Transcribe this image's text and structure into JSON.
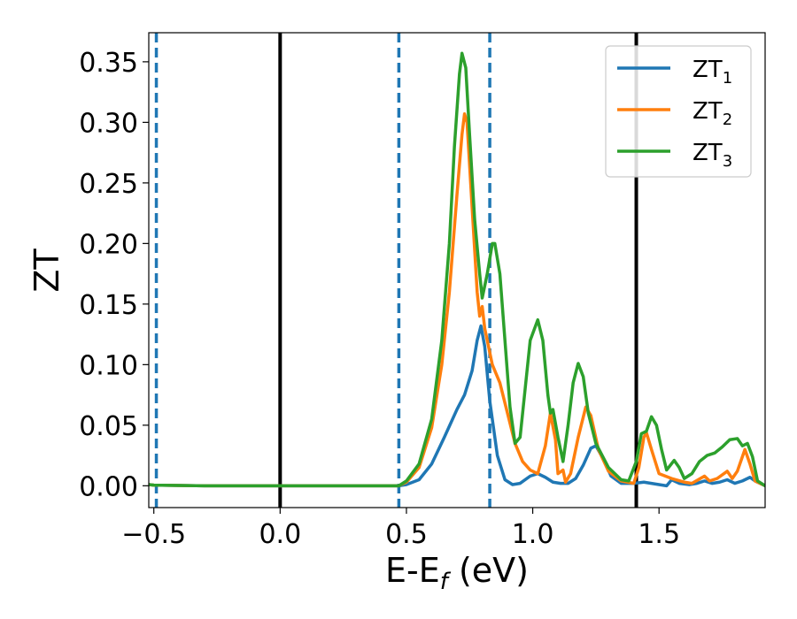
{
  "chart_data": {
    "type": "line",
    "xlabel_main": "E-E",
    "xlabel_sub": "f",
    "xlabel_unit": " (eV)",
    "ylabel": "ZT",
    "xlim": [
      -0.52,
      1.92
    ],
    "ylim": [
      -0.018,
      0.374
    ],
    "x_ticks": [
      -0.5,
      0.0,
      0.5,
      1.0,
      1.5
    ],
    "x_tick_labels": [
      "−0.5",
      "0.0",
      "0.5",
      "1.0",
      "1.5"
    ],
    "y_ticks": [
      0.0,
      0.05,
      0.1,
      0.15,
      0.2,
      0.25,
      0.3,
      0.35
    ],
    "y_tick_labels": [
      "0.00",
      "0.05",
      "0.10",
      "0.15",
      "0.20",
      "0.25",
      "0.30",
      "0.35"
    ],
    "grid": false,
    "legend_position": "top-right",
    "solid_vlines": [
      0.0,
      1.41
    ],
    "dashed_vlines": [
      -0.49,
      0.47,
      0.83
    ],
    "solid_vline_color": "#000000",
    "dashed_vline_color": "#1f77b4",
    "series": [
      {
        "name": "ZT",
        "subscript": "1",
        "color": "#1f77b4",
        "points": [
          [
            -0.52,
            0.001
          ],
          [
            -0.5,
            0.0005
          ],
          [
            -0.3,
            0.0
          ],
          [
            0.0,
            0.0
          ],
          [
            0.3,
            0.0
          ],
          [
            0.47,
            0.0
          ],
          [
            0.5,
            0.001
          ],
          [
            0.55,
            0.005
          ],
          [
            0.6,
            0.018
          ],
          [
            0.65,
            0.04
          ],
          [
            0.7,
            0.063
          ],
          [
            0.73,
            0.075
          ],
          [
            0.76,
            0.095
          ],
          [
            0.78,
            0.12
          ],
          [
            0.795,
            0.132
          ],
          [
            0.81,
            0.115
          ],
          [
            0.83,
            0.07
          ],
          [
            0.86,
            0.025
          ],
          [
            0.89,
            0.005
          ],
          [
            0.92,
            0.001
          ],
          [
            0.95,
            0.002
          ],
          [
            0.99,
            0.008
          ],
          [
            1.02,
            0.01
          ],
          [
            1.05,
            0.007
          ],
          [
            1.08,
            0.003
          ],
          [
            1.11,
            0.002
          ],
          [
            1.14,
            0.002
          ],
          [
            1.17,
            0.006
          ],
          [
            1.2,
            0.017
          ],
          [
            1.23,
            0.031
          ],
          [
            1.25,
            0.033
          ],
          [
            1.28,
            0.022
          ],
          [
            1.31,
            0.008
          ],
          [
            1.35,
            0.002
          ],
          [
            1.4,
            0.002
          ],
          [
            1.44,
            0.003
          ],
          [
            1.47,
            0.002
          ],
          [
            1.5,
            0.001
          ],
          [
            1.53,
            0.0
          ],
          [
            1.55,
            0.005
          ],
          [
            1.58,
            0.002
          ],
          [
            1.62,
            0.001
          ],
          [
            1.65,
            0.002
          ],
          [
            1.68,
            0.004
          ],
          [
            1.71,
            0.002
          ],
          [
            1.74,
            0.003
          ],
          [
            1.77,
            0.005
          ],
          [
            1.8,
            0.002
          ],
          [
            1.83,
            0.004
          ],
          [
            1.86,
            0.007
          ],
          [
            1.88,
            0.004
          ],
          [
            1.92,
            0.0
          ]
        ]
      },
      {
        "name": "ZT",
        "subscript": "2",
        "color": "#ff7f0e",
        "points": [
          [
            -0.52,
            0.001
          ],
          [
            -0.5,
            0.0005
          ],
          [
            -0.3,
            0.0
          ],
          [
            0.0,
            0.0
          ],
          [
            0.3,
            0.0
          ],
          [
            0.47,
            0.0
          ],
          [
            0.5,
            0.003
          ],
          [
            0.55,
            0.015
          ],
          [
            0.6,
            0.048
          ],
          [
            0.64,
            0.1
          ],
          [
            0.67,
            0.16
          ],
          [
            0.7,
            0.24
          ],
          [
            0.72,
            0.29
          ],
          [
            0.73,
            0.307
          ],
          [
            0.74,
            0.3
          ],
          [
            0.76,
            0.23
          ],
          [
            0.78,
            0.16
          ],
          [
            0.79,
            0.14
          ],
          [
            0.8,
            0.148
          ],
          [
            0.81,
            0.13
          ],
          [
            0.82,
            0.12
          ],
          [
            0.84,
            0.1
          ],
          [
            0.87,
            0.085
          ],
          [
            0.9,
            0.06
          ],
          [
            0.93,
            0.035
          ],
          [
            0.96,
            0.02
          ],
          [
            0.99,
            0.013
          ],
          [
            1.02,
            0.01
          ],
          [
            1.05,
            0.033
          ],
          [
            1.07,
            0.06
          ],
          [
            1.09,
            0.038
          ],
          [
            1.1,
            0.01
          ],
          [
            1.12,
            0.013
          ],
          [
            1.13,
            0.003
          ],
          [
            1.15,
            0.01
          ],
          [
            1.18,
            0.04
          ],
          [
            1.21,
            0.065
          ],
          [
            1.23,
            0.058
          ],
          [
            1.26,
            0.03
          ],
          [
            1.3,
            0.012
          ],
          [
            1.35,
            0.004
          ],
          [
            1.4,
            0.002
          ],
          [
            1.42,
            0.015
          ],
          [
            1.44,
            0.04
          ],
          [
            1.45,
            0.044
          ],
          [
            1.47,
            0.03
          ],
          [
            1.5,
            0.01
          ],
          [
            1.55,
            0.006
          ],
          [
            1.6,
            0.003
          ],
          [
            1.63,
            0.002
          ],
          [
            1.68,
            0.008
          ],
          [
            1.7,
            0.004
          ],
          [
            1.73,
            0.006
          ],
          [
            1.77,
            0.012
          ],
          [
            1.79,
            0.006
          ],
          [
            1.81,
            0.012
          ],
          [
            1.84,
            0.03
          ],
          [
            1.86,
            0.018
          ],
          [
            1.88,
            0.004
          ],
          [
            1.92,
            0.0
          ]
        ]
      },
      {
        "name": "ZT",
        "subscript": "3",
        "color": "#2ca02c",
        "points": [
          [
            -0.52,
            0.001
          ],
          [
            -0.5,
            0.0005
          ],
          [
            -0.3,
            0.0
          ],
          [
            0.0,
            0.0
          ],
          [
            0.3,
            0.0
          ],
          [
            0.47,
            0.0
          ],
          [
            0.5,
            0.004
          ],
          [
            0.55,
            0.018
          ],
          [
            0.6,
            0.055
          ],
          [
            0.64,
            0.12
          ],
          [
            0.67,
            0.2
          ],
          [
            0.69,
            0.28
          ],
          [
            0.71,
            0.34
          ],
          [
            0.72,
            0.357
          ],
          [
            0.735,
            0.345
          ],
          [
            0.75,
            0.29
          ],
          [
            0.77,
            0.22
          ],
          [
            0.79,
            0.175
          ],
          [
            0.8,
            0.155
          ],
          [
            0.82,
            0.175
          ],
          [
            0.84,
            0.2
          ],
          [
            0.85,
            0.2
          ],
          [
            0.87,
            0.175
          ],
          [
            0.89,
            0.12
          ],
          [
            0.91,
            0.065
          ],
          [
            0.93,
            0.035
          ],
          [
            0.95,
            0.04
          ],
          [
            0.97,
            0.08
          ],
          [
            0.99,
            0.12
          ],
          [
            1.02,
            0.137
          ],
          [
            1.04,
            0.12
          ],
          [
            1.06,
            0.075
          ],
          [
            1.07,
            0.06
          ],
          [
            1.08,
            0.063
          ],
          [
            1.1,
            0.04
          ],
          [
            1.12,
            0.02
          ],
          [
            1.14,
            0.05
          ],
          [
            1.16,
            0.085
          ],
          [
            1.18,
            0.101
          ],
          [
            1.2,
            0.09
          ],
          [
            1.22,
            0.06
          ],
          [
            1.25,
            0.035
          ],
          [
            1.3,
            0.015
          ],
          [
            1.35,
            0.005
          ],
          [
            1.38,
            0.004
          ],
          [
            1.41,
            0.02
          ],
          [
            1.43,
            0.043
          ],
          [
            1.45,
            0.045
          ],
          [
            1.47,
            0.057
          ],
          [
            1.49,
            0.05
          ],
          [
            1.51,
            0.03
          ],
          [
            1.53,
            0.013
          ],
          [
            1.56,
            0.021
          ],
          [
            1.58,
            0.015
          ],
          [
            1.6,
            0.006
          ],
          [
            1.63,
            0.01
          ],
          [
            1.66,
            0.02
          ],
          [
            1.69,
            0.025
          ],
          [
            1.72,
            0.027
          ],
          [
            1.75,
            0.032
          ],
          [
            1.78,
            0.038
          ],
          [
            1.81,
            0.039
          ],
          [
            1.83,
            0.033
          ],
          [
            1.85,
            0.035
          ],
          [
            1.87,
            0.024
          ],
          [
            1.89,
            0.004
          ],
          [
            1.92,
            0.0
          ]
        ]
      }
    ]
  }
}
